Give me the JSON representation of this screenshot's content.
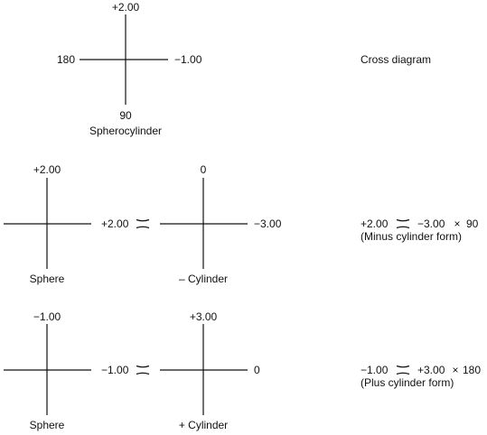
{
  "spherocylinder": {
    "top": "+2.00",
    "left": "180",
    "right": "−1.00",
    "bottom": "90",
    "caption": "Spherocylinder",
    "note": "Cross diagram"
  },
  "minus_row": {
    "sphere_top": "+2.00",
    "sphere_caption": "Sphere",
    "sphere_value": "+2.00",
    "cyl_top": "0",
    "cyl_right": "−3.00",
    "cyl_caption": "– Cylinder",
    "formula_sphere": "+2.00",
    "formula_cyl": "−3.00",
    "formula_times": "×",
    "formula_axis": "90",
    "form_note": "(Minus cylinder form)"
  },
  "plus_row": {
    "sphere_top": "−1.00",
    "sphere_caption": "Sphere",
    "sphere_value": "−1.00",
    "cyl_top": "+3.00",
    "cyl_right": "0",
    "cyl_caption": "+ Cylinder",
    "formula_sphere": "−1.00",
    "formula_cyl": "+3.00",
    "formula_times": "×",
    "formula_axis": "180",
    "form_note": "(Plus cylinder form)"
  }
}
